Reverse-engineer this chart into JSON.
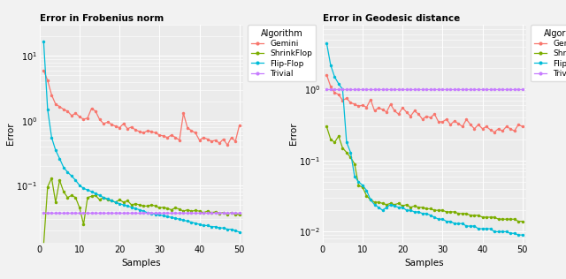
{
  "title1": "Error in Frobenius norm",
  "title2": "Error in Geodesic distance",
  "xlabel": "Samples",
  "ylabel": "Error",
  "colors": {
    "Gemini": "#F8766D",
    "ShrinkFlop": "#7CAE00",
    "Flip-Flop": "#00BCD8",
    "Trivial": "#C77CFF"
  },
  "legend_title": "Algorithm",
  "frob": {
    "x": [
      1,
      2,
      3,
      4,
      5,
      6,
      7,
      8,
      9,
      10,
      11,
      12,
      13,
      14,
      15,
      16,
      17,
      18,
      19,
      20,
      21,
      22,
      23,
      24,
      25,
      26,
      27,
      28,
      29,
      30,
      31,
      32,
      33,
      34,
      35,
      36,
      37,
      38,
      39,
      40,
      41,
      42,
      43,
      44,
      45,
      46,
      47,
      48,
      49,
      50
    ],
    "gemini": [
      6.0,
      4.2,
      2.5,
      1.8,
      1.65,
      1.5,
      1.4,
      1.2,
      1.3,
      1.15,
      1.05,
      1.1,
      1.55,
      1.4,
      1.05,
      0.9,
      0.95,
      0.88,
      0.82,
      0.78,
      0.9,
      0.75,
      0.8,
      0.72,
      0.68,
      0.65,
      0.7,
      0.68,
      0.65,
      0.6,
      0.58,
      0.55,
      0.6,
      0.55,
      0.5,
      1.3,
      0.78,
      0.7,
      0.65,
      0.5,
      0.55,
      0.52,
      0.48,
      0.5,
      0.45,
      0.52,
      0.42,
      0.55,
      0.48,
      0.85
    ],
    "shrinkflop": [
      0.012,
      0.095,
      0.13,
      0.055,
      0.12,
      0.08,
      0.065,
      0.07,
      0.065,
      0.045,
      0.025,
      0.065,
      0.068,
      0.07,
      0.06,
      0.065,
      0.06,
      0.058,
      0.055,
      0.06,
      0.055,
      0.058,
      0.05,
      0.052,
      0.05,
      0.048,
      0.048,
      0.05,
      0.048,
      0.045,
      0.046,
      0.044,
      0.042,
      0.045,
      0.043,
      0.04,
      0.042,
      0.04,
      0.041,
      0.04,
      0.038,
      0.04,
      0.038,
      0.039,
      0.037,
      0.038,
      0.036,
      0.038,
      0.036,
      0.035
    ],
    "flipflop": [
      17.0,
      1.5,
      0.55,
      0.35,
      0.26,
      0.19,
      0.16,
      0.14,
      0.12,
      0.1,
      0.09,
      0.085,
      0.08,
      0.075,
      0.07,
      0.065,
      0.062,
      0.058,
      0.055,
      0.052,
      0.05,
      0.048,
      0.046,
      0.044,
      0.042,
      0.04,
      0.038,
      0.037,
      0.036,
      0.035,
      0.034,
      0.033,
      0.032,
      0.031,
      0.03,
      0.029,
      0.028,
      0.027,
      0.026,
      0.025,
      0.024,
      0.024,
      0.023,
      0.023,
      0.022,
      0.022,
      0.021,
      0.021,
      0.02,
      0.019
    ],
    "trivial": [
      0.038,
      0.038,
      0.038,
      0.038,
      0.038,
      0.038,
      0.038,
      0.038,
      0.038,
      0.038,
      0.038,
      0.038,
      0.038,
      0.038,
      0.038,
      0.038,
      0.038,
      0.038,
      0.038,
      0.038,
      0.038,
      0.038,
      0.038,
      0.038,
      0.038,
      0.038,
      0.038,
      0.038,
      0.038,
      0.038,
      0.038,
      0.038,
      0.038,
      0.038,
      0.038,
      0.038,
      0.038,
      0.038,
      0.038,
      0.038,
      0.038,
      0.038,
      0.038,
      0.038,
      0.038,
      0.038,
      0.038,
      0.038,
      0.038,
      0.038
    ]
  },
  "geo": {
    "x": [
      1,
      2,
      3,
      4,
      5,
      6,
      7,
      8,
      9,
      10,
      11,
      12,
      13,
      14,
      15,
      16,
      17,
      18,
      19,
      20,
      21,
      22,
      23,
      24,
      25,
      26,
      27,
      28,
      29,
      30,
      31,
      32,
      33,
      34,
      35,
      36,
      37,
      38,
      39,
      40,
      41,
      42,
      43,
      44,
      45,
      46,
      47,
      48,
      49,
      50
    ],
    "gemini": [
      1.6,
      1.1,
      0.9,
      0.85,
      0.7,
      0.75,
      0.65,
      0.62,
      0.58,
      0.6,
      0.56,
      0.72,
      0.5,
      0.55,
      0.52,
      0.48,
      0.62,
      0.5,
      0.45,
      0.55,
      0.48,
      0.42,
      0.5,
      0.45,
      0.38,
      0.42,
      0.4,
      0.45,
      0.35,
      0.35,
      0.38,
      0.32,
      0.36,
      0.33,
      0.3,
      0.38,
      0.32,
      0.28,
      0.32,
      0.28,
      0.3,
      0.27,
      0.25,
      0.28,
      0.26,
      0.3,
      0.28,
      0.26,
      0.32,
      0.3
    ],
    "shrinkflop": [
      0.3,
      0.2,
      0.18,
      0.22,
      0.15,
      0.13,
      0.11,
      0.09,
      0.045,
      0.042,
      0.032,
      0.028,
      0.026,
      0.026,
      0.025,
      0.024,
      0.025,
      0.024,
      0.025,
      0.023,
      0.024,
      0.022,
      0.023,
      0.022,
      0.022,
      0.021,
      0.021,
      0.02,
      0.02,
      0.02,
      0.019,
      0.019,
      0.019,
      0.018,
      0.018,
      0.018,
      0.017,
      0.017,
      0.017,
      0.016,
      0.016,
      0.016,
      0.016,
      0.015,
      0.015,
      0.015,
      0.015,
      0.015,
      0.014,
      0.014
    ],
    "flipflop": [
      4.5,
      2.2,
      1.5,
      1.2,
      1.0,
      0.18,
      0.13,
      0.06,
      0.05,
      0.045,
      0.038,
      0.028,
      0.024,
      0.022,
      0.02,
      0.022,
      0.024,
      0.023,
      0.022,
      0.022,
      0.02,
      0.02,
      0.019,
      0.019,
      0.018,
      0.018,
      0.017,
      0.016,
      0.015,
      0.015,
      0.014,
      0.014,
      0.013,
      0.013,
      0.013,
      0.012,
      0.012,
      0.012,
      0.011,
      0.011,
      0.011,
      0.011,
      0.01,
      0.01,
      0.01,
      0.01,
      0.0095,
      0.0095,
      0.009,
      0.009
    ],
    "trivial": [
      1.0,
      1.0,
      1.0,
      1.0,
      1.0,
      1.0,
      1.0,
      1.0,
      1.0,
      1.0,
      1.0,
      1.0,
      1.0,
      1.0,
      1.0,
      1.0,
      1.0,
      1.0,
      1.0,
      1.0,
      1.0,
      1.0,
      1.0,
      1.0,
      1.0,
      1.0,
      1.0,
      1.0,
      1.0,
      1.0,
      1.0,
      1.0,
      1.0,
      1.0,
      1.0,
      1.0,
      1.0,
      1.0,
      1.0,
      1.0,
      1.0,
      1.0,
      1.0,
      1.0,
      1.0,
      1.0,
      1.0,
      1.0,
      1.0,
      1.0
    ]
  },
  "bg_color": "#EBEBEB",
  "grid_color": "#FFFFFF",
  "fig_bg": "#F2F2F2",
  "marker_size": 2.5,
  "line_width": 0.9
}
